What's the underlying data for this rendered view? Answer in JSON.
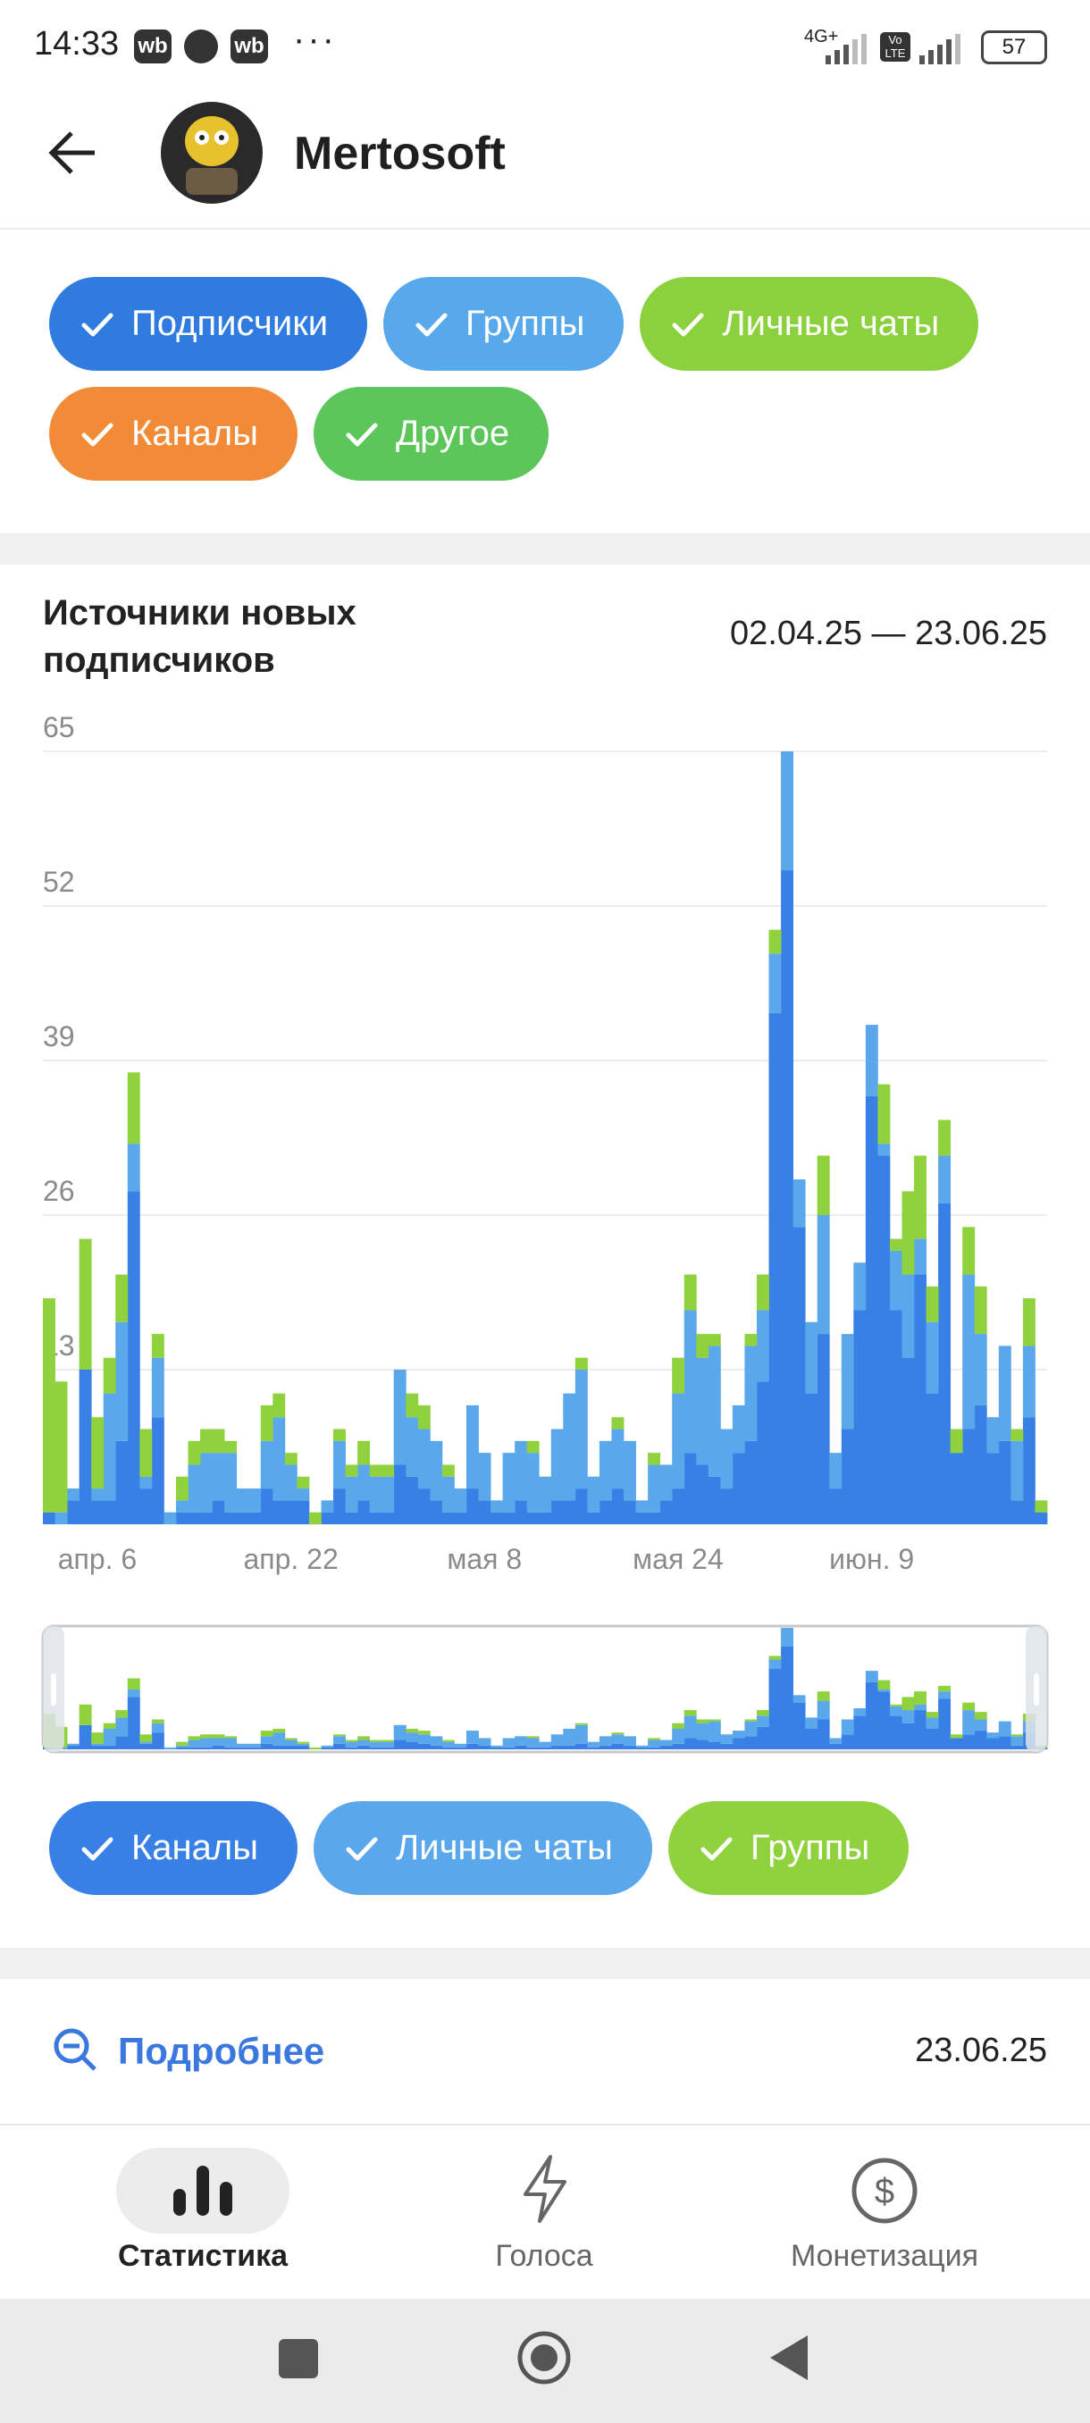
{
  "status_bar": {
    "time": "14:33",
    "app_icons": [
      "wb",
      "wb"
    ],
    "network": "4G+",
    "volte": "Vo LTE",
    "battery": "57"
  },
  "header": {
    "title": "Mertosoft"
  },
  "filters": [
    {
      "label": "Подписчики",
      "color": "#2f7be0"
    },
    {
      "label": "Группы",
      "color": "#58a9ec"
    },
    {
      "label": "Личные чаты",
      "color": "#8bd03d"
    },
    {
      "label": "Каналы",
      "color": "#f28b38"
    },
    {
      "label": "Другое",
      "color": "#5cc65a"
    }
  ],
  "chart_data": {
    "type": "bar",
    "stacked": true,
    "title": "Источники новых подписчиков",
    "date_range": "02.04.25 — 23.06.25",
    "categories": [
      null,
      null,
      null,
      null,
      "апр. 6",
      null,
      null,
      null,
      null,
      null,
      null,
      null,
      null,
      null,
      null,
      null,
      null,
      null,
      null,
      null,
      "апр. 22",
      null,
      null,
      null,
      null,
      null,
      null,
      null,
      null,
      null,
      null,
      null,
      null,
      null,
      null,
      null,
      "мая 8",
      null,
      null,
      null,
      null,
      null,
      null,
      null,
      null,
      null,
      null,
      null,
      null,
      null,
      null,
      null,
      "мая 24",
      null,
      null,
      null,
      null,
      null,
      null,
      null,
      null,
      null,
      null,
      null,
      null,
      null,
      null,
      null,
      "июн. 9",
      null,
      null,
      null,
      null,
      null,
      null,
      null,
      null,
      null,
      null,
      null,
      null,
      null,
      null
    ],
    "series": [
      {
        "name": "Каналы",
        "color": "#3980e6",
        "values": [
          1,
          0,
          2,
          13,
          2,
          2,
          7,
          28,
          3,
          9,
          0,
          1,
          1,
          1,
          2,
          1,
          1,
          1,
          3,
          2,
          2,
          2,
          0,
          1,
          3,
          1,
          2,
          1,
          1,
          5,
          4,
          3,
          2,
          1,
          1,
          3,
          2,
          1,
          1,
          2,
          1,
          1,
          2,
          2,
          3,
          1,
          2,
          3,
          2,
          1,
          1,
          2,
          3,
          6,
          5,
          4,
          3,
          6,
          7,
          12,
          43,
          55,
          25,
          11,
          16,
          3,
          8,
          18,
          36,
          31,
          18,
          14,
          21,
          11,
          27,
          6,
          8,
          10,
          6,
          7,
          2,
          9,
          1
        ]
      },
      {
        "name": "Личные чаты",
        "color": "#5aa7ec",
        "values": [
          0,
          1,
          1,
          0,
          1,
          9,
          10,
          4,
          1,
          5,
          1,
          1,
          4,
          5,
          4,
          5,
          2,
          2,
          4,
          7,
          3,
          1,
          0,
          1,
          4,
          3,
          3,
          3,
          3,
          8,
          5,
          5,
          5,
          3,
          2,
          7,
          4,
          1,
          5,
          5,
          5,
          3,
          6,
          9,
          10,
          3,
          5,
          5,
          5,
          1,
          4,
          3,
          8,
          12,
          9,
          11,
          5,
          4,
          8,
          6,
          5,
          10,
          4,
          6,
          10,
          3,
          8,
          4,
          6,
          1,
          5,
          7,
          3,
          6,
          4,
          0,
          13,
          6,
          3,
          8,
          5,
          6,
          0
        ]
      },
      {
        "name": "Группы",
        "color": "#8fd23d",
        "values": [
          18,
          11,
          0,
          11,
          6,
          3,
          4,
          6,
          4,
          2,
          0,
          2,
          2,
          2,
          2,
          1,
          0,
          0,
          3,
          2,
          1,
          1,
          1,
          0,
          1,
          1,
          2,
          1,
          1,
          0,
          2,
          2,
          0,
          1,
          0,
          0,
          0,
          0,
          0,
          0,
          1,
          0,
          0,
          0,
          1,
          0,
          0,
          1,
          0,
          0,
          1,
          0,
          3,
          3,
          2,
          1,
          0,
          0,
          1,
          3,
          2,
          0,
          0,
          0,
          5,
          0,
          0,
          0,
          0,
          5,
          1,
          7,
          7,
          3,
          3,
          2,
          4,
          4,
          0,
          0,
          1,
          4,
          1
        ]
      }
    ],
    "ylim": [
      0,
      65
    ],
    "yticks": [
      0,
      13,
      26,
      39,
      52,
      65
    ],
    "grid": true
  },
  "details": {
    "label": "Подробнее",
    "date": "23.06.25"
  },
  "nav": [
    "Статистика",
    "Голоса",
    "Монетизация"
  ]
}
